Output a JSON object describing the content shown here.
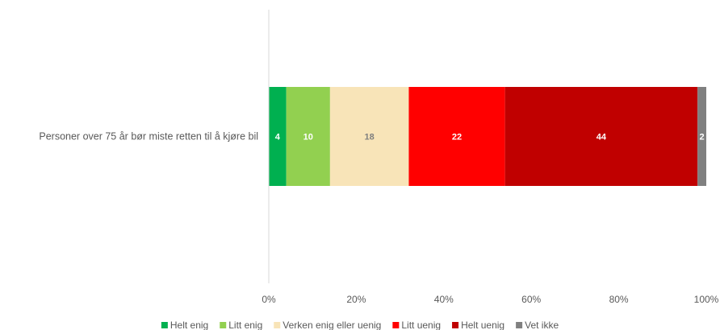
{
  "chart_data": {
    "type": "bar",
    "orientation": "horizontal",
    "stacked": true,
    "categories": [
      "Personer over 75 år bør miste retten til å kjøre bil"
    ],
    "series": [
      {
        "name": "Helt enig",
        "values": [
          4
        ],
        "color": "#00B050",
        "label_color": "#ffffff"
      },
      {
        "name": "Litt enig",
        "values": [
          10
        ],
        "color": "#92D050",
        "label_color": "#ffffff"
      },
      {
        "name": "Verken enig eller uenig",
        "values": [
          18
        ],
        "color": "#F8E4B8",
        "label_color": "#7F7F7F"
      },
      {
        "name": "Litt uenig",
        "values": [
          22
        ],
        "color": "#FF0000",
        "label_color": "#ffffff"
      },
      {
        "name": "Helt uenig",
        "values": [
          44
        ],
        "color": "#C00000",
        "label_color": "#ffffff"
      },
      {
        "name": "Vet ikke",
        "values": [
          2
        ],
        "color": "#808080",
        "label_color": "#ffffff"
      }
    ],
    "xlim": [
      0,
      100
    ],
    "x_ticks": [
      "0%",
      "20%",
      "40%",
      "60%",
      "80%",
      "100%"
    ],
    "grid": false,
    "legend_position": "bottom"
  }
}
